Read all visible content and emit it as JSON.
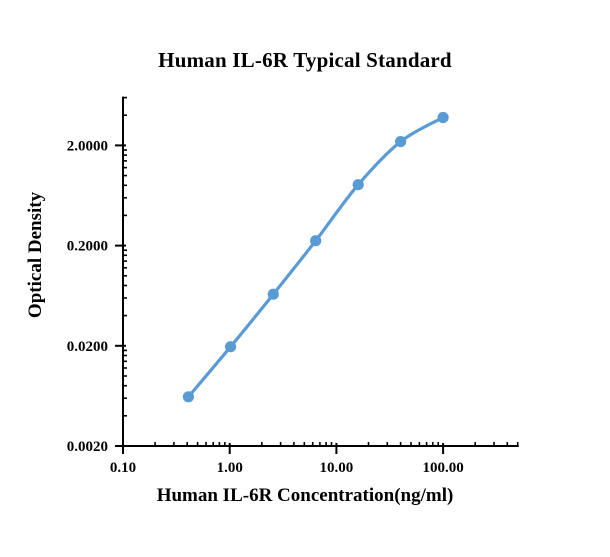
{
  "chart_data": {
    "type": "line",
    "title": "Human IL-6R Typical Standard",
    "xlabel": "Human IL-6R Concentration(ng/ml)",
    "ylabel": "Optical Density",
    "x_scale": "log",
    "y_scale": "log",
    "x_range": [
      0.1,
      500
    ],
    "y_range": [
      0.002,
      6
    ],
    "x_major_ticks": {
      "values": [
        0.1,
        1,
        10,
        100
      ],
      "labels": [
        "0.10",
        "1.00",
        "10.00",
        "100.00"
      ]
    },
    "y_major_ticks": {
      "values": [
        2,
        0.2,
        0.02,
        0.002
      ],
      "labels": [
        "2.0000",
        "0.2000",
        "0.0200",
        "0.0020"
      ]
    },
    "series": [
      {
        "name": "Human IL-6R Typical Standard",
        "x": [
          0.41,
          1.02,
          2.56,
          6.4,
          16,
          40,
          100
        ],
        "y": [
          0.0062,
          0.0196,
          0.0655,
          0.224,
          0.81,
          2.18,
          3.8
        ]
      }
    ],
    "line_color": "#5B9BD5",
    "axis_color": "#000000",
    "marker": "circle",
    "smoothed": true,
    "grid": false,
    "legend": "none"
  }
}
